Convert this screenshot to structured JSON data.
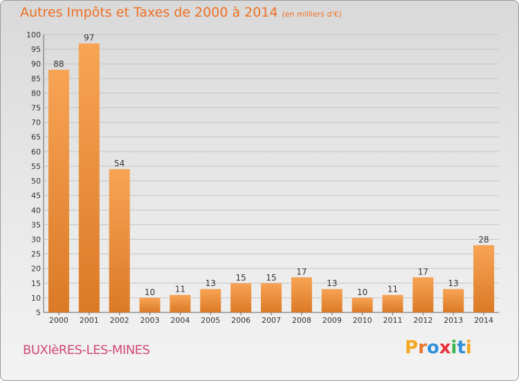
{
  "header": {
    "title": "Autres Impôts et Taxes de 2000 à 2014",
    "unit": "(en milliers d'€)"
  },
  "footer": {
    "commune": "BUXIèRES-LES-MINES",
    "logo": [
      "P",
      "r",
      "o",
      "x",
      "i",
      "t",
      "i"
    ]
  },
  "colors": {
    "title": "#ee6f22",
    "commune": "#d04a78",
    "bar_light": "#f7a455",
    "bar_dark": "#db7a26",
    "logo": [
      "#f5a623",
      "#e8732a",
      "#2f8fd8",
      "#e8303a",
      "#3cb44b",
      "#2f8fd8",
      "#f5a623"
    ]
  },
  "chart_data": {
    "type": "bar",
    "categories": [
      "2000",
      "2001",
      "2002",
      "2003",
      "2004",
      "2005",
      "2006",
      "2007",
      "2008",
      "2009",
      "2010",
      "2011",
      "2012",
      "2013",
      "2014"
    ],
    "values": [
      88,
      97,
      54,
      10,
      11,
      13,
      15,
      15,
      17,
      13,
      10,
      11,
      17,
      13,
      28
    ],
    "ylim": [
      5,
      100
    ],
    "yticks": [
      5,
      10,
      15,
      20,
      25,
      30,
      35,
      40,
      45,
      50,
      55,
      60,
      65,
      70,
      75,
      80,
      85,
      90,
      95,
      100
    ],
    "grid": true,
    "data_labels": true
  }
}
